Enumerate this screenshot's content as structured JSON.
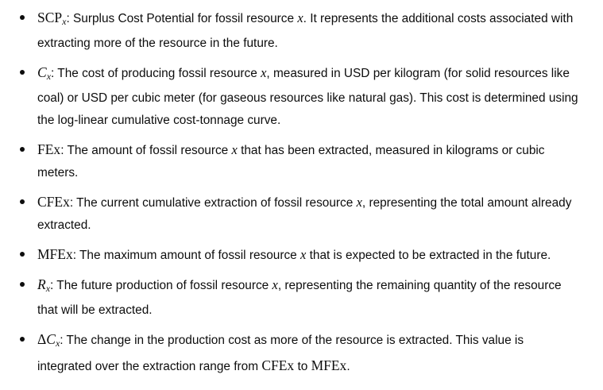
{
  "items": [
    {
      "sym": "SCP",
      "sub": "x",
      "colon": ":",
      "t1": " Surplus Cost Potential for fossil resource ",
      "m1": "x",
      "t2": ". It represents the additional costs associated with extracting more of the resource in the future."
    },
    {
      "sym": "C",
      "sub": "x",
      "colon": ":",
      "t1": " The cost of producing fossil resource ",
      "m1": "x",
      "t2": ", measured in USD per kilogram (for solid resources like coal) or USD per cubic meter (for gaseous resources like natural gas). This cost is determined using the log-linear cumulative cost-tonnage curve."
    },
    {
      "sym": "FEx",
      "colon": ":",
      "t1": " The amount of fossil resource ",
      "m1": "x",
      "t2": " that has been extracted, measured in kilograms or cubic meters."
    },
    {
      "sym": "CFEx",
      "colon": ":",
      "t1": " The current cumulative extraction of fossil resource ",
      "m1": "x",
      "t2": ", representing the total amount already extracted."
    },
    {
      "sym": "MFEx",
      "colon": ":",
      "t1": " The maximum amount of fossil resource ",
      "m1": "x",
      "t2": " that is expected to be extracted in the future."
    },
    {
      "sym": "R",
      "sub": "x",
      "colon": ":",
      "t1": " The future production of fossil resource ",
      "m1": "x",
      "t2": ", representing the remaining quantity of the resource that will be extracted."
    },
    {
      "sym_delta": "Δ",
      "sym": "C",
      "sub": "x",
      "colon": ":",
      "t1": " The change in the production cost as more of the resource is extracted. This value is integrated over the extraction range from ",
      "r1": "CFEx",
      "t2": " to ",
      "r2": "MFEx",
      "t3": "."
    }
  ]
}
